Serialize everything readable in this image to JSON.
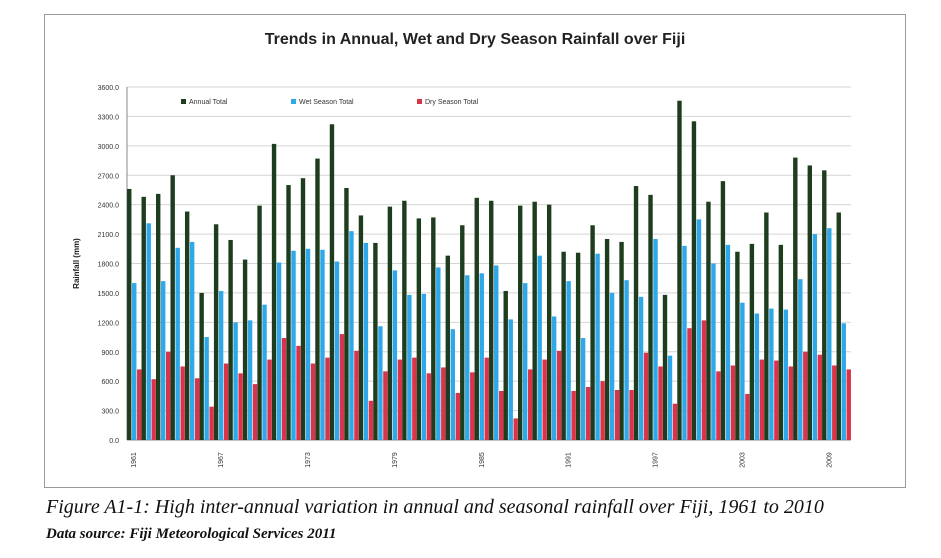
{
  "chart_data": {
    "type": "bar",
    "title": "Trends in Annual, Wet and Dry Season Rainfall over Fiji",
    "xlabel": "",
    "ylabel": "Rainfall (mm)",
    "ylim": [
      0,
      3600
    ],
    "yticks": [
      "0.0",
      "300.0",
      "600.0",
      "900.0",
      "1200.0",
      "1500.0",
      "1800.0",
      "2100.0",
      "2400.0",
      "2700.0",
      "3000.0",
      "3300.0",
      "3600.0"
    ],
    "xtick_labels": [
      "1961",
      "1967",
      "1973",
      "1979",
      "1985",
      "1991",
      "1997",
      "2003",
      "2009"
    ],
    "categories": [
      1961,
      1962,
      1963,
      1964,
      1965,
      1966,
      1967,
      1968,
      1969,
      1970,
      1971,
      1972,
      1973,
      1974,
      1975,
      1976,
      1977,
      1978,
      1979,
      1980,
      1981,
      1982,
      1983,
      1984,
      1985,
      1986,
      1987,
      1988,
      1989,
      1990,
      1991,
      1992,
      1993,
      1994,
      1995,
      1996,
      1997,
      1998,
      1999,
      2000,
      2001,
      2002,
      2003,
      2004,
      2005,
      2006,
      2007,
      2008,
      2009,
      2010
    ],
    "series": [
      {
        "name": "Annual Total",
        "color": "#1e3d1e",
        "values": [
          2560,
          2480,
          2510,
          2700,
          2330,
          1500,
          2200,
          2040,
          1840,
          2390,
          3020,
          2600,
          2670,
          2870,
          3220,
          2570,
          2290,
          2010,
          2380,
          2440,
          2260,
          2270,
          1880,
          2190,
          2470,
          2440,
          1520,
          2390,
          2430,
          2400,
          1920,
          1910,
          2190,
          2050,
          2020,
          2590,
          2500,
          1480,
          3460,
          3250,
          2430,
          2640,
          1920,
          2000,
          2320,
          1990,
          2880,
          2800,
          2750,
          2320
        ]
      },
      {
        "name": "Wet Season Total",
        "color": "#2ea8e8",
        "values": [
          1600,
          2210,
          1620,
          1960,
          2020,
          1050,
          1520,
          1200,
          1220,
          1380,
          1810,
          1930,
          1950,
          1940,
          1820,
          2130,
          2010,
          1160,
          1730,
          1480,
          1490,
          1760,
          1130,
          1680,
          1700,
          1780,
          1230,
          1600,
          1880,
          1260,
          1620,
          1040,
          1900,
          1500,
          1630,
          1460,
          2050,
          860,
          1980,
          2250,
          1800,
          1990,
          1400,
          1290,
          1340,
          1330,
          1640,
          2100,
          2160,
          1190
        ]
      },
      {
        "name": "Dry Season Total",
        "color": "#d9344a",
        "values": [
          720,
          620,
          900,
          750,
          630,
          340,
          780,
          680,
          570,
          820,
          1040,
          960,
          780,
          840,
          1080,
          910,
          400,
          700,
          820,
          840,
          680,
          740,
          480,
          690,
          840,
          500,
          220,
          720,
          820,
          910,
          500,
          540,
          600,
          510,
          510,
          890,
          750,
          370,
          1140,
          1220,
          700,
          760,
          470,
          820,
          810,
          750,
          900,
          870,
          760,
          720
        ]
      }
    ]
  },
  "figure": {
    "caption": "Figure A1-1: High inter-annual variation in annual and seasonal rainfall over Fiji, 1961 to 2010",
    "source": "Data source: Fiji Meteorological Services 2011"
  }
}
